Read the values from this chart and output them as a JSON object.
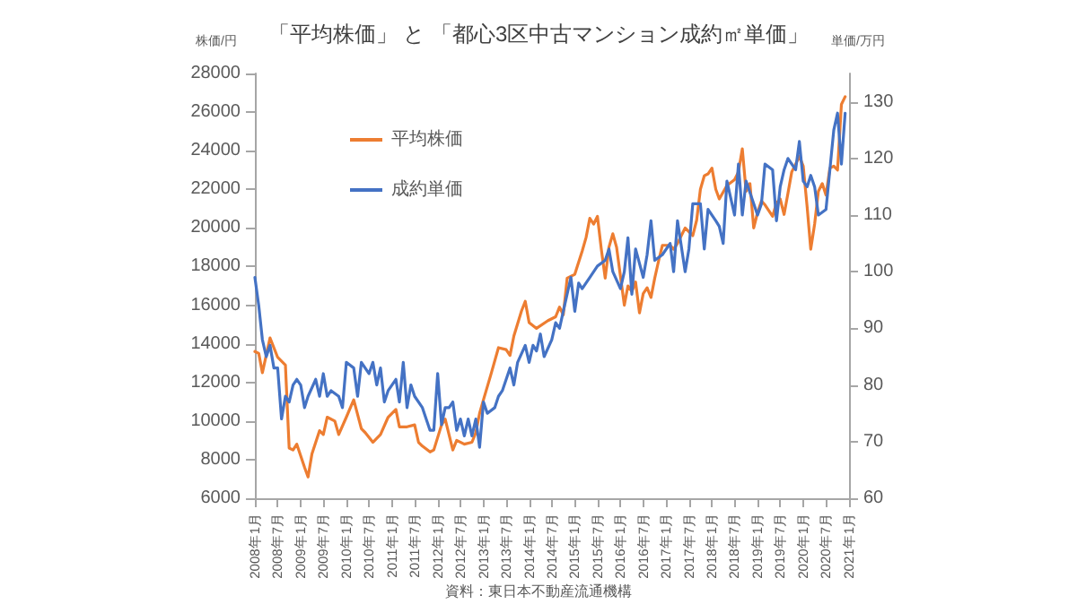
{
  "chart_data": {
    "type": "line",
    "title": "「平均株価」 と 「都心3区中古マンション成約㎡単価」",
    "ylabel": "株価/円",
    "y2label": "単価/万円",
    "annotations": [
      "資料：東日本不動産流通機構"
    ],
    "xlim": [
      "2008-01",
      "2021-01"
    ],
    "xticks": [
      {
        "value": "2008-01",
        "label": "2008年1月"
      },
      {
        "value": "2008-07",
        "label": "2008年7月"
      },
      {
        "value": "2009-01",
        "label": "2009年1月"
      },
      {
        "value": "2009-07",
        "label": "2009年7月"
      },
      {
        "value": "2010-01",
        "label": "2010年1月"
      },
      {
        "value": "2010-07",
        "label": "2010年7月"
      },
      {
        "value": "2011-01",
        "label": "2011年1月"
      },
      {
        "value": "2011-07",
        "label": "2011年7月"
      },
      {
        "value": "2012-01",
        "label": "2012年1月"
      },
      {
        "value": "2012-07",
        "label": "2012年7月"
      },
      {
        "value": "2013-01",
        "label": "2013年1月"
      },
      {
        "value": "2013-07",
        "label": "2013年7月"
      },
      {
        "value": "2014-01",
        "label": "2014年1月"
      },
      {
        "value": "2014-07",
        "label": "2014年7月"
      },
      {
        "value": "2015-01",
        "label": "2015年1月"
      },
      {
        "value": "2015-07",
        "label": "2015年7月"
      },
      {
        "value": "2016-01",
        "label": "2016年1月"
      },
      {
        "value": "2016-07",
        "label": "2016年7月"
      },
      {
        "value": "2017-01",
        "label": "2017年1月"
      },
      {
        "value": "2017-07",
        "label": "2017年7月"
      },
      {
        "value": "2018-01",
        "label": "2018年1月"
      },
      {
        "value": "2018-07",
        "label": "2018年7月"
      },
      {
        "value": "2019-01",
        "label": "2019年1月"
      },
      {
        "value": "2019-07",
        "label": "2019年7月"
      },
      {
        "value": "2020-01",
        "label": "2020年1月"
      },
      {
        "value": "2020-07",
        "label": "2020年7月"
      },
      {
        "value": "2021-01",
        "label": "2021年1月"
      }
    ],
    "ylim": [
      6000,
      28000
    ],
    "yticks": [
      6000,
      8000,
      10000,
      12000,
      14000,
      16000,
      18000,
      20000,
      22000,
      24000,
      26000,
      28000
    ],
    "y2lim": [
      60,
      135
    ],
    "y2ticks": [
      60,
      70,
      80,
      90,
      100,
      110,
      120,
      130
    ],
    "grid": false,
    "legend": "top left",
    "marker": "none",
    "line_style": "solid",
    "series": [
      {
        "name": "平均株価",
        "color": "#ed7d31",
        "x": [
          "2008-01",
          "2008-02",
          "2008-03",
          "2008-05",
          "2008-07",
          "2008-09",
          "2008-10",
          "2008-11",
          "2008-12",
          "2009-02",
          "2009-03",
          "2009-04",
          "2009-06",
          "2009-07",
          "2009-08",
          "2009-10",
          "2009-11",
          "2010-01",
          "2010-03",
          "2010-05",
          "2010-06",
          "2010-08",
          "2010-10",
          "2010-12",
          "2011-02",
          "2011-03",
          "2011-05",
          "2011-07",
          "2011-08",
          "2011-09",
          "2011-11",
          "2011-12",
          "2012-02",
          "2012-03",
          "2012-05",
          "2012-06",
          "2012-08",
          "2012-10",
          "2012-11",
          "2012-12",
          "2013-01",
          "2013-03",
          "2013-05",
          "2013-07",
          "2013-08",
          "2013-09",
          "2013-11",
          "2013-12",
          "2014-01",
          "2014-03",
          "2014-06",
          "2014-08",
          "2014-09",
          "2014-10",
          "2014-11",
          "2015-01",
          "2015-03",
          "2015-04",
          "2015-05",
          "2015-06",
          "2015-07",
          "2015-08",
          "2015-09",
          "2015-10",
          "2015-11",
          "2015-12",
          "2016-01",
          "2016-02",
          "2016-03",
          "2016-04",
          "2016-05",
          "2016-06",
          "2016-07",
          "2016-08",
          "2016-09",
          "2016-10",
          "2016-11",
          "2016-12",
          "2017-02",
          "2017-03",
          "2017-04",
          "2017-06",
          "2017-08",
          "2017-09",
          "2017-10",
          "2017-11",
          "2017-12",
          "2018-01",
          "2018-02",
          "2018-03",
          "2018-05",
          "2018-07",
          "2018-08",
          "2018-09",
          "2018-10",
          "2018-11",
          "2018-12",
          "2019-01",
          "2019-02",
          "2019-03",
          "2019-05",
          "2019-06",
          "2019-07",
          "2019-08",
          "2019-09",
          "2019-10",
          "2019-11",
          "2019-12",
          "2020-01",
          "2020-02",
          "2020-03",
          "2020-04",
          "2020-05",
          "2020-06",
          "2020-07",
          "2020-08",
          "2020-09",
          "2020-10",
          "2020-11",
          "2020-12"
        ],
        "values": [
          13600,
          13500,
          12500,
          14300,
          13300,
          12900,
          8600,
          8500,
          8800,
          7600,
          7100,
          8300,
          9500,
          9300,
          10200,
          10000,
          9300,
          10200,
          11100,
          9600,
          9400,
          8900,
          9300,
          10200,
          10600,
          9700,
          9700,
          9800,
          8900,
          8700,
          8400,
          8500,
          9800,
          10100,
          8500,
          9000,
          8800,
          8900,
          9400,
          10400,
          11100,
          12400,
          13800,
          13700,
          13400,
          14400,
          15700,
          16200,
          15100,
          14800,
          15200,
          15400,
          15900,
          15500,
          17400,
          17600,
          18800,
          19500,
          20500,
          20200,
          20600,
          18900,
          17400,
          19000,
          19700,
          19000,
          17500,
          16000,
          17000,
          16700,
          17200,
          15600,
          16600,
          16900,
          16400,
          17400,
          18300,
          19100,
          19100,
          18900,
          19200,
          20000,
          19600,
          20400,
          22000,
          22700,
          22800,
          23100,
          22000,
          21500,
          22200,
          22500,
          22900,
          24100,
          21900,
          22300,
          20000,
          20800,
          21400,
          21200,
          20600,
          21300,
          21500,
          20700,
          21800,
          22900,
          23300,
          23700,
          23200,
          21100,
          18900,
          20200,
          21900,
          22300,
          21700,
          23100,
          23200,
          23000,
          26400,
          26800
        ]
      },
      {
        "name": "成約単価",
        "color": "#4472c4",
        "axis": "y2",
        "x": [
          "2008-01",
          "2008-02",
          "2008-03",
          "2008-04",
          "2008-05",
          "2008-06",
          "2008-07",
          "2008-08",
          "2008-09",
          "2008-10",
          "2008-11",
          "2008-12",
          "2009-01",
          "2009-02",
          "2009-03",
          "2009-05",
          "2009-06",
          "2009-07",
          "2009-08",
          "2009-09",
          "2009-11",
          "2009-12",
          "2010-01",
          "2010-03",
          "2010-04",
          "2010-05",
          "2010-07",
          "2010-08",
          "2010-09",
          "2010-10",
          "2010-11",
          "2010-12",
          "2011-02",
          "2011-03",
          "2011-04",
          "2011-05",
          "2011-06",
          "2011-07",
          "2011-09",
          "2011-10",
          "2011-11",
          "2011-12",
          "2012-01",
          "2012-02",
          "2012-03",
          "2012-04",
          "2012-05",
          "2012-06",
          "2012-07",
          "2012-08",
          "2012-09",
          "2012-10",
          "2012-11",
          "2012-12",
          "2013-01",
          "2013-02",
          "2013-04",
          "2013-05",
          "2013-06",
          "2013-08",
          "2013-09",
          "2013-10",
          "2013-12",
          "2014-01",
          "2014-02",
          "2014-03",
          "2014-04",
          "2014-05",
          "2014-07",
          "2014-08",
          "2014-09",
          "2014-10",
          "2014-12",
          "2015-01",
          "2015-02",
          "2015-03",
          "2015-05",
          "2015-07",
          "2015-09",
          "2015-10",
          "2015-11",
          "2016-01",
          "2016-02",
          "2016-03",
          "2016-04",
          "2016-05",
          "2016-07",
          "2016-08",
          "2016-09",
          "2016-10",
          "2016-12",
          "2017-02",
          "2017-03",
          "2017-04",
          "2017-06",
          "2017-07",
          "2017-08",
          "2017-10",
          "2017-11",
          "2017-12",
          "2018-02",
          "2018-03",
          "2018-04",
          "2018-05",
          "2018-07",
          "2018-08",
          "2018-09",
          "2018-10",
          "2018-12",
          "2019-01",
          "2019-02",
          "2019-03",
          "2019-05",
          "2019-06",
          "2019-07",
          "2019-08",
          "2019-09",
          "2019-11",
          "2019-12",
          "2020-01",
          "2020-02",
          "2020-03",
          "2020-04",
          "2020-05",
          "2020-07",
          "2020-08",
          "2020-09",
          "2020-10",
          "2020-11",
          "2020-12"
        ],
        "values": [
          99,
          94,
          88,
          85,
          87,
          83,
          83,
          74,
          78,
          77,
          80,
          81,
          80,
          76,
          78,
          81,
          78,
          82,
          78,
          79,
          78,
          76,
          84,
          83,
          78,
          84,
          82,
          84,
          80,
          83,
          77,
          79,
          81,
          77,
          84,
          76,
          80,
          78,
          76,
          74,
          72,
          72,
          82,
          73,
          76,
          76,
          77,
          72,
          74,
          71,
          74,
          71,
          74,
          69,
          77,
          75,
          76,
          78,
          79,
          83,
          80,
          84,
          87,
          84,
          87,
          86,
          89,
          85,
          88,
          91,
          90,
          93,
          99,
          93,
          98,
          97,
          99,
          101,
          102,
          104,
          100,
          97,
          100,
          106,
          96,
          104,
          99,
          103,
          109,
          102,
          103,
          105,
          100,
          109,
          100,
          104,
          112,
          112,
          104,
          111,
          109,
          108,
          105,
          116,
          110,
          119,
          110,
          116,
          112,
          110,
          112,
          119,
          118,
          109,
          115,
          118,
          120,
          118,
          123,
          116,
          115,
          117,
          115,
          110,
          111,
          118,
          125,
          128,
          119,
          128
        ]
      }
    ]
  }
}
